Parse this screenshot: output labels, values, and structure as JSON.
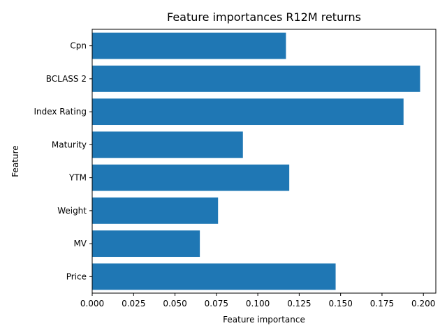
{
  "chart_data": {
    "type": "bar",
    "orientation": "horizontal",
    "title": "Feature importances R12M returns",
    "xlabel": "Feature importance",
    "ylabel": "Feature",
    "categories": [
      "Price",
      "MV",
      "Weight",
      "YTM",
      "Maturity",
      "Index Rating",
      "BCLASS 2",
      "Cpn"
    ],
    "values": [
      0.147,
      0.065,
      0.076,
      0.119,
      0.091,
      0.188,
      0.198,
      0.117
    ],
    "xlim": [
      0.0,
      0.2075
    ],
    "xticks": [
      "0.000",
      "0.025",
      "0.050",
      "0.075",
      "0.100",
      "0.125",
      "0.150",
      "0.175",
      "0.200"
    ],
    "xtick_values": [
      0,
      0.025,
      0.05,
      0.075,
      0.1,
      0.125,
      0.15,
      0.175,
      0.2
    ],
    "bar_color": "#1f77b4",
    "grid": false,
    "legend": "none"
  }
}
